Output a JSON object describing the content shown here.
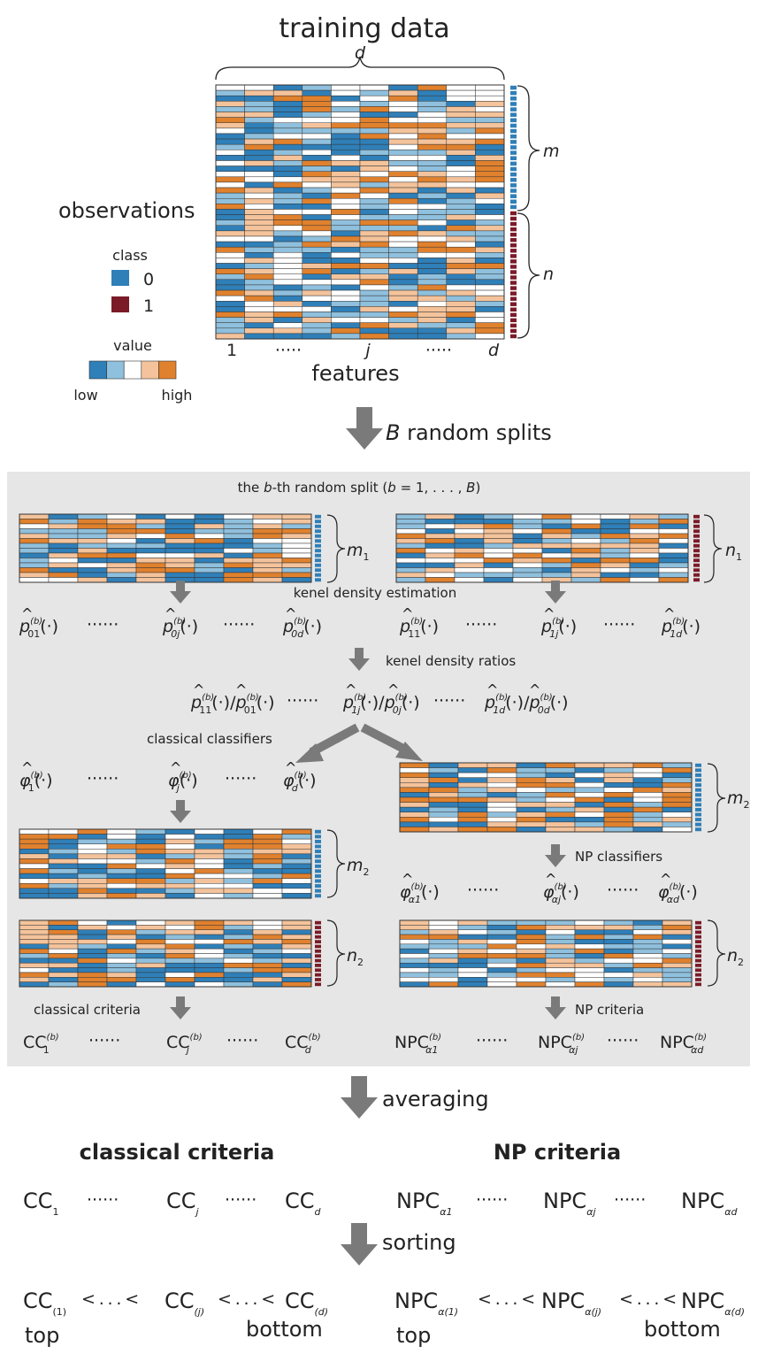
{
  "title": "training data",
  "top": {
    "d_label": "d",
    "observations": "observations",
    "features": "features",
    "m_label": "m",
    "n_label": "n",
    "feat_ticks": [
      "1",
      "·····",
      "j",
      "·····",
      "d"
    ]
  },
  "legend": {
    "class_title": "class",
    "class0": "0",
    "class1": "1",
    "value_title": "value",
    "low": "low",
    "high": "high"
  },
  "colors": {
    "class0": "#2f7fb8",
    "class1": "#7b1b28",
    "value_scale": [
      "#2f7fb8",
      "#8fc0dd",
      "#ffffff",
      "#f4c39b",
      "#e0812e"
    ],
    "panel_bg": "#e6e6e6",
    "arrow": "#7a7a7a"
  },
  "steps": {
    "random_splits_b": "B",
    "random_splits_text": " random splits",
    "averaging": "averaging",
    "sorting": "sorting"
  },
  "panel": {
    "title_pre": "the ",
    "title_b": "b",
    "title_mid": "-th random split (",
    "title_b2": "b",
    "title_post": " = 1, . . . , ",
    "title_B": "B",
    "title_close": ")",
    "m1": "m",
    "m1_sub": "1",
    "n1": "n",
    "n1_sub": "1",
    "kde": "kenel density estimation",
    "kdr": "kenel density ratios",
    "classical_classifiers": "classical classifiers",
    "np_classifiers": "NP classifiers",
    "m2": "m",
    "m2_sub": "2",
    "n2": "n",
    "n2_sub": "2",
    "classical_criteria": "classical criteria",
    "np_criteria": "NP criteria",
    "dots": "······",
    "p0": [
      "01",
      "0j",
      "0d"
    ],
    "p1": [
      "11",
      "1j",
      "1d"
    ],
    "phi": [
      "1",
      "j",
      "d"
    ],
    "phi_np": [
      "α1",
      "αj",
      "αd"
    ],
    "ratios": [
      [
        "11",
        "01"
      ],
      [
        "1j",
        "0j"
      ],
      [
        "1d",
        "0d"
      ]
    ],
    "cc_b": [
      "1",
      "j",
      "d"
    ],
    "npc_b": [
      "α1",
      "αj",
      "αd"
    ],
    "sup_b": "(b)",
    "arg": "(·)",
    "cc": "CC",
    "npc": "NPC"
  },
  "bottom": {
    "classical_header": "classical criteria",
    "np_header": "NP criteria",
    "cc": "CC",
    "npc": "NPC",
    "cc_subs": [
      "1",
      "j",
      "d"
    ],
    "npc_subs": [
      "α1",
      "αj",
      "αd"
    ],
    "dots": "······",
    "cc_sorted_subs": [
      "(1)",
      "(j)",
      "(d)"
    ],
    "npc_sorted_subs": [
      "α(1)",
      "α(j)",
      "α(d)"
    ],
    "lt1": "< . . . <",
    "top": "top",
    "bottom": "bottom"
  }
}
